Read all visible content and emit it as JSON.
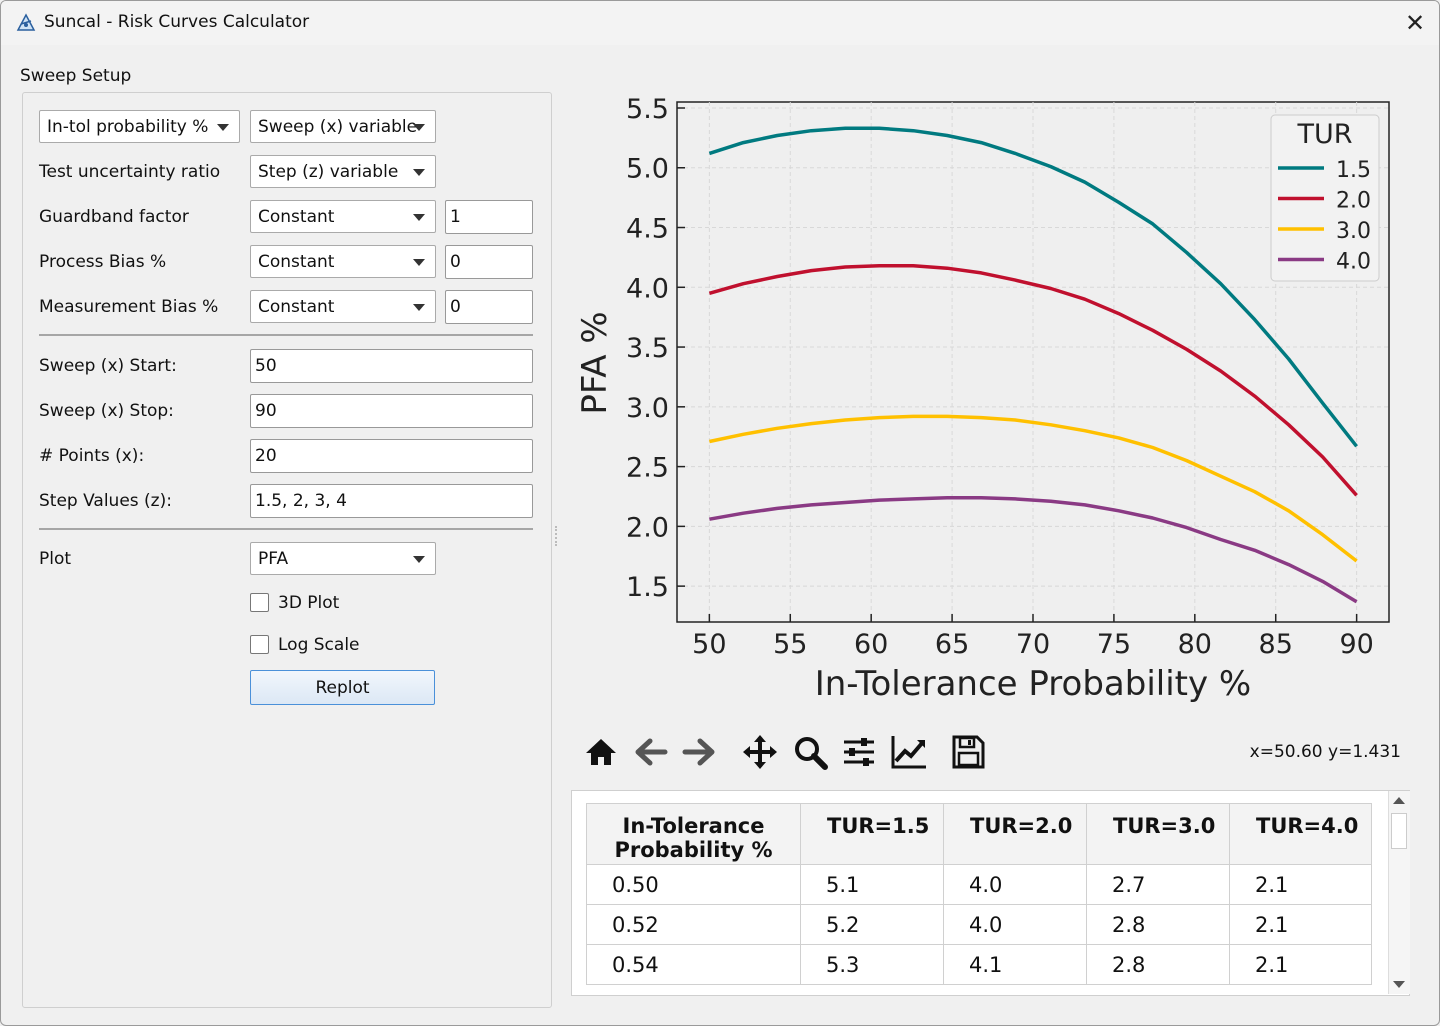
{
  "window": {
    "title": "Suncal - Risk Curves Calculator",
    "close_glyph": "✕"
  },
  "sweep_setup": {
    "group_title": "Sweep Setup",
    "variable_combo": "In-tol probability %",
    "sweep_combo": "Sweep (x) variable",
    "rows": [
      {
        "label": "Test uncertainty ratio",
        "mode": "Step (z) variable",
        "value": null
      },
      {
        "label": "Guardband factor",
        "mode": "Constant",
        "value": "1"
      },
      {
        "label": "Process Bias %",
        "mode": "Constant",
        "value": "0"
      },
      {
        "label": "Measurement Bias %",
        "mode": "Constant",
        "value": "0"
      }
    ],
    "sweep_start_label": "Sweep (x) Start:",
    "sweep_start_value": "50",
    "sweep_stop_label": "Sweep (x) Stop:",
    "sweep_stop_value": "90",
    "points_label": "# Points (x):",
    "points_value": "20",
    "step_values_label": "Step Values (z):",
    "step_values_value": "1.5, 2, 3, 4",
    "plot_label": "Plot",
    "plot_value": "PFA",
    "plot3d_label": "3D Plot",
    "plot3d_checked": false,
    "logscale_label": "Log Scale",
    "logscale_checked": false,
    "replot_label": "Replot"
  },
  "chart_data": {
    "type": "line",
    "title": "",
    "xlabel": "In-Tolerance Probability %",
    "ylabel": "PFA %",
    "xlim": [
      48,
      92
    ],
    "ylim": [
      1.2,
      5.55
    ],
    "xticks": [
      50,
      55,
      60,
      65,
      70,
      75,
      80,
      85,
      90
    ],
    "yticks": [
      1.5,
      2.0,
      2.5,
      3.0,
      3.5,
      4.0,
      4.5,
      5.0,
      5.5
    ],
    "grid": true,
    "legend_title": "TUR",
    "legend_position": "top-right",
    "x": [
      50,
      52.1,
      54.2,
      56.3,
      58.4,
      60.5,
      62.6,
      64.7,
      66.8,
      68.9,
      71.1,
      73.2,
      75.3,
      77.4,
      79.5,
      81.6,
      83.7,
      85.8,
      87.9,
      90
    ],
    "series": [
      {
        "name": "1.5",
        "color": "#007a80",
        "values": [
          5.12,
          5.21,
          5.27,
          5.31,
          5.33,
          5.33,
          5.31,
          5.27,
          5.21,
          5.12,
          5.01,
          4.88,
          4.71,
          4.53,
          4.29,
          4.03,
          3.73,
          3.4,
          3.03,
          2.67
        ]
      },
      {
        "name": "2.0",
        "color": "#c0102e",
        "values": [
          3.95,
          4.03,
          4.09,
          4.14,
          4.17,
          4.18,
          4.18,
          4.16,
          4.12,
          4.06,
          3.99,
          3.9,
          3.78,
          3.64,
          3.48,
          3.3,
          3.09,
          2.85,
          2.58,
          2.26
        ]
      },
      {
        "name": "3.0",
        "color": "#ffc000",
        "values": [
          2.71,
          2.77,
          2.82,
          2.86,
          2.89,
          2.91,
          2.92,
          2.92,
          2.91,
          2.89,
          2.85,
          2.8,
          2.74,
          2.66,
          2.55,
          2.42,
          2.29,
          2.13,
          1.93,
          1.71
        ]
      },
      {
        "name": "4.0",
        "color": "#8a3a84",
        "values": [
          2.06,
          2.11,
          2.15,
          2.18,
          2.2,
          2.22,
          2.23,
          2.24,
          2.24,
          2.23,
          2.21,
          2.18,
          2.13,
          2.07,
          1.99,
          1.89,
          1.8,
          1.68,
          1.54,
          1.37
        ]
      }
    ]
  },
  "toolbar": {
    "icons": [
      "home-icon",
      "back-arrow-icon",
      "forward-arrow-icon",
      "pan-icon",
      "zoom-icon",
      "configure-subplots-icon",
      "edit-axis-icon",
      "save-icon"
    ],
    "coords": "x=50.60 y=1.431"
  },
  "table": {
    "headers": [
      "In-Tolerance Probability %",
      "TUR=1.5",
      "TUR=2.0",
      "TUR=3.0",
      "TUR=4.0"
    ],
    "header_first_lines": [
      "In-Tolerance",
      "Probability %"
    ],
    "rows": [
      [
        "0.50",
        "5.1",
        "4.0",
        "2.7",
        "2.1"
      ],
      [
        "0.52",
        "5.2",
        "4.0",
        "2.8",
        "2.1"
      ],
      [
        "0.54",
        "5.3",
        "4.1",
        "2.8",
        "2.1"
      ]
    ]
  }
}
